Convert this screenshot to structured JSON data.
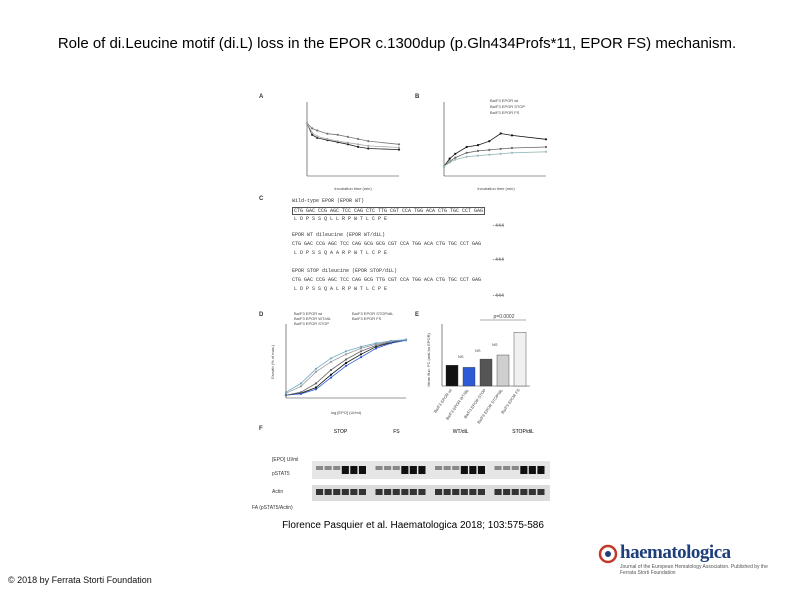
{
  "slide": {
    "title": "Role of di.Leucine motif (di.L) loss in the EPOR c.1300dup (p.Gln434Profs*11, EPOR FS) mechanism.",
    "citation": "Florence Pasquier et al. Haematologica 2018; 103:575-586",
    "copyright": "© 2018 by Ferrata Storti Foundation",
    "logo_text": "haematologica",
    "logo_subtitle": "Journal of the European Hematology Association. Published by the Ferrata Storti Foundation"
  },
  "figure": {
    "panel_labels": [
      "A",
      "B",
      "C",
      "D",
      "E",
      "F"
    ],
    "panel_a": {
      "xlabel": "Incubation time (min)"
    },
    "panel_b": {
      "xlabel": "Incubation time (min)",
      "legend": [
        "Ba/F3 EPOR wt",
        "Ba/F3 EPOR STOP",
        "Ba/F3 EPOR FS"
      ]
    },
    "panel_c": {
      "rows": [
        {
          "label": "Wild-type EPOR (EPOR WT)",
          "seq": "CTG GAC CCG AGC TCC CAG CTC TTG CGT CCA TGG ACA CTG TGC CCT GAG",
          "aa": "L  D  P  S  S  Q  L  L  R  P  W  T  L  C  P  E",
          "pos": "-444"
        },
        {
          "label": "EPOR WT dileucine (EPOR WT/diL)",
          "seq": "CTG GAC CCG AGC TCC CAG GCG GCG CGT CCA TGG ACA CTG TGC CCT GAG",
          "aa": "L  D  P  S  S  Q  A  A  R  P  W  T  L  C  P  E",
          "pos": "-444"
        },
        {
          "label": "EPOR STOP dileucine (EPOR STOP/diL)",
          "seq": "CTG GAC CCG AGC TCC CAG GCG TTG CGT CCA TGG ACA CTG TGC CCT GAG",
          "aa": "L  D  P  S  S  Q  A  L  R  P  W  T  L  C  P  E",
          "pos": "-444"
        }
      ]
    },
    "panel_d": {
      "xlabel": "log [EPO] (UI/ml)",
      "ylabel": "Growth (% of max.)",
      "legend": [
        "Ba/F3 EPOR wt",
        "Ba/F3 EPOR WT/diL",
        "Ba/F3 EPOR STOP",
        "Ba/F3 EPOR STOP/diL",
        "Ba/F3 EPOR FS"
      ]
    },
    "panel_e": {
      "ylabel": "Mean fluo. FC (anti-hu EPOR)",
      "pvalue": "p=0.0002",
      "ns_labels": [
        "NS",
        "NS",
        "NS"
      ],
      "categories": [
        "Ba/F3 EPOR wt",
        "Ba/F3 EPOR WT/diL",
        "Ba/F3 EPOR STOP",
        "Ba/F3 EPOR STOP/diL",
        "Ba/F3 EPOR FS"
      ],
      "values": [
        1.0,
        0.9,
        1.3,
        1.5,
        2.6
      ],
      "colors": [
        "#111111",
        "#2d5bd8",
        "#555555",
        "#cfcfcf",
        "#f0f0f0"
      ]
    },
    "panel_f": {
      "groups": [
        "STOP",
        "FS",
        "WT/diL",
        "STOP/diL"
      ],
      "row_labels": [
        "[EPO] UI/ml",
        "pSTAT5",
        "Actin"
      ],
      "quant_label": "FA (pSTAT5/Actin)"
    }
  },
  "chart_data": [
    {
      "type": "line",
      "panel": "A",
      "xlabel": "Incubation time (min)",
      "ylabel": "",
      "x": [
        0,
        5,
        10,
        20,
        30,
        40,
        50,
        60,
        90
      ],
      "ylim": [
        0,
        140
      ],
      "series": [
        {
          "values": [
            100,
            78,
            72,
            68,
            64,
            60,
            55,
            52,
            50
          ]
        },
        {
          "values": [
            100,
            90,
            86,
            80,
            78,
            74,
            70,
            66,
            60
          ]
        },
        {
          "values": [
            100,
            82,
            75,
            70,
            66,
            63,
            60,
            57,
            54
          ]
        }
      ]
    },
    {
      "type": "line",
      "panel": "B",
      "xlabel": "Incubation time (min)",
      "ylabel": "",
      "x": [
        0,
        5,
        10,
        20,
        30,
        40,
        50,
        60,
        90
      ],
      "ylim": [
        0,
        600
      ],
      "series": [
        {
          "name": "Ba/F3 EPOR wt",
          "values": [
            100,
            180,
            230,
            300,
            320,
            360,
            440,
            420,
            380
          ]
        },
        {
          "name": "Ba/F3 EPOR STOP",
          "values": [
            100,
            150,
            190,
            240,
            260,
            270,
            280,
            290,
            300
          ]
        },
        {
          "name": "Ba/F3 EPOR FS",
          "values": [
            100,
            140,
            170,
            200,
            210,
            220,
            230,
            240,
            250
          ]
        }
      ]
    },
    {
      "type": "line",
      "panel": "D",
      "xlabel": "log [EPO] (UI/ml)",
      "ylabel": "Growth (% of max.)",
      "x": [
        -5,
        -4.5,
        -4,
        -3.5,
        -3,
        -2.5,
        -2,
        -1.5,
        -1
      ],
      "ylim": [
        0,
        120
      ],
      "series": [
        {
          "name": "Ba/F3 EPOR wt",
          "values": [
            5,
            8,
            18,
            40,
            60,
            75,
            88,
            95,
            100
          ]
        },
        {
          "name": "Ba/F3 EPOR WT/diL",
          "values": [
            5,
            7,
            15,
            35,
            55,
            70,
            85,
            94,
            99
          ]
        },
        {
          "name": "Ba/F3 EPOR STOP",
          "values": [
            5,
            10,
            25,
            48,
            66,
            80,
            90,
            96,
            100
          ]
        },
        {
          "name": "Ba/F3 EPOR STOP/diL",
          "values": [
            8,
            20,
            45,
            62,
            75,
            85,
            92,
            97,
            100
          ]
        },
        {
          "name": "Ba/F3 EPOR FS",
          "values": [
            10,
            25,
            50,
            68,
            80,
            88,
            94,
            98,
            100
          ]
        }
      ]
    },
    {
      "type": "bar",
      "panel": "E",
      "categories": [
        "Ba/F3 EPOR wt",
        "Ba/F3 EPOR WT/diL",
        "Ba/F3 EPOR STOP",
        "Ba/F3 EPOR STOP/diL",
        "Ba/F3 EPOR FS"
      ],
      "values": [
        1.0,
        0.9,
        1.3,
        1.5,
        2.6
      ],
      "ylabel": "Mean fluo. FC (anti-hu EPOR)",
      "ylim": [
        0,
        3
      ]
    }
  ]
}
